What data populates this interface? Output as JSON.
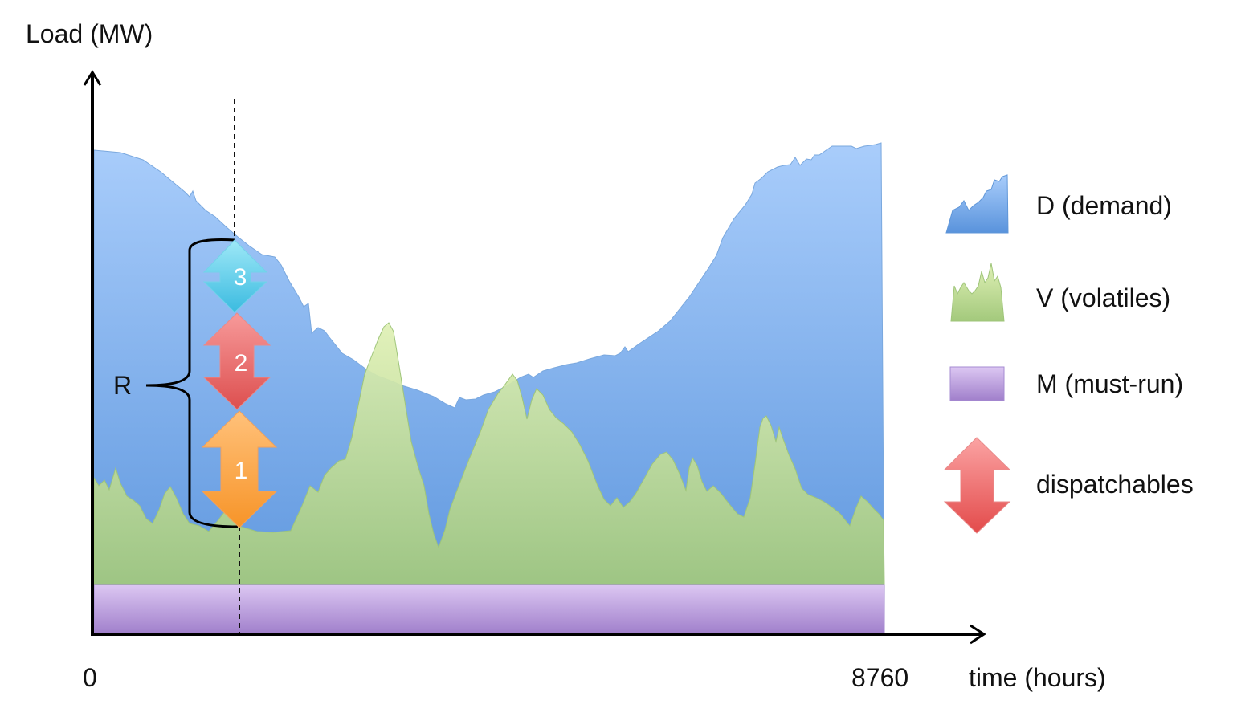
{
  "axes": {
    "y_label": "Load (MW)",
    "x_label": "time (hours)",
    "x_start": "0",
    "x_end": "8760"
  },
  "reserve_label": "R",
  "arrows": [
    {
      "number": "1",
      "color": "#f9a23c"
    },
    {
      "number": "2",
      "color": "#e0585a"
    },
    {
      "number": "3",
      "color": "#4ec9e6"
    }
  ],
  "legend": [
    {
      "key": "demand",
      "label": "D (demand)",
      "icon": "demand-area-icon",
      "color": "#6fa6e6"
    },
    {
      "key": "volatiles",
      "label": "V (volatiles)",
      "icon": "volatiles-area-icon",
      "color": "#b6d98e"
    },
    {
      "key": "must_run",
      "label": "M (must-run)",
      "icon": "must-run-bar-icon",
      "color": "#b08ed6"
    },
    {
      "key": "dispatchables",
      "label": "dispatchables",
      "icon": "double-arrow-icon",
      "color": "#ee6464"
    }
  ]
}
